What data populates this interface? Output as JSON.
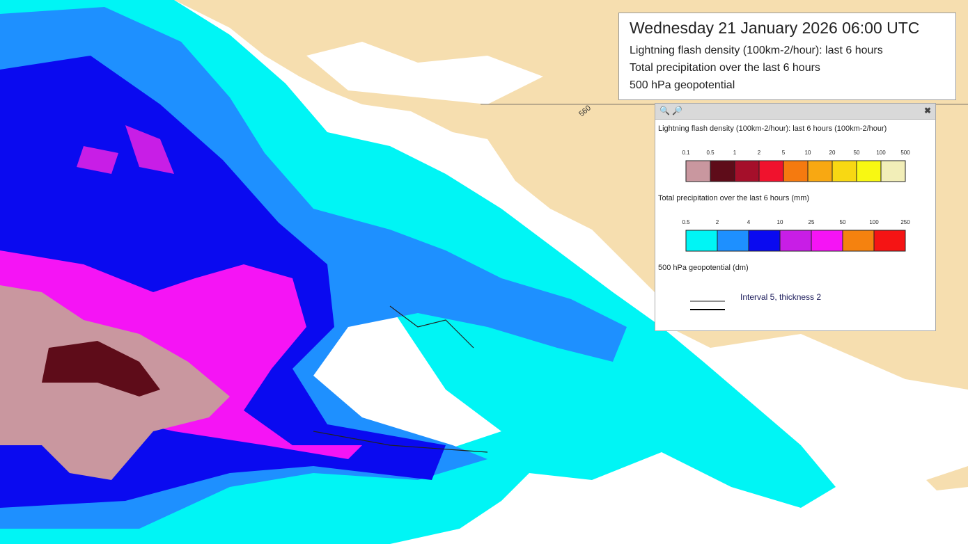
{
  "title_box": {
    "datetime": "Wednesday 21 January 2026 06:00 UTC",
    "layers": [
      "Lightning flash density (100km-2/hour): last 6 hours",
      "Total precipitation over the last 6 hours",
      "500 hPa geopotential"
    ]
  },
  "legend": {
    "lightning": {
      "title": "Lightning flash density (100km-2/hour): last 6 hours (100km-2/hour)",
      "ticks": [
        "0.1",
        "0.5",
        "1",
        "2",
        "5",
        "10",
        "20",
        "50",
        "100",
        "500"
      ],
      "colors": [
        "#c9979f",
        "#5e0c19",
        "#a50f2a",
        "#f0122d",
        "#f57a0f",
        "#f8a812",
        "#f8d813",
        "#f8f812",
        "#f2eeb8"
      ]
    },
    "precipitation": {
      "title": "Total precipitation over the last 6 hours (mm)",
      "ticks": [
        "0.5",
        "2",
        "4",
        "10",
        "25",
        "50",
        "100",
        "250"
      ],
      "colors": [
        "#00f5f5",
        "#1e90ff",
        "#0a0af0",
        "#c81ee6",
        "#f514f5",
        "#f5820f",
        "#f51414"
      ]
    },
    "geopotential": {
      "title": "500 hPa geopotential (dm)",
      "note": "Interval 5, thickness 2"
    }
  },
  "map": {
    "contour_label": "560"
  }
}
